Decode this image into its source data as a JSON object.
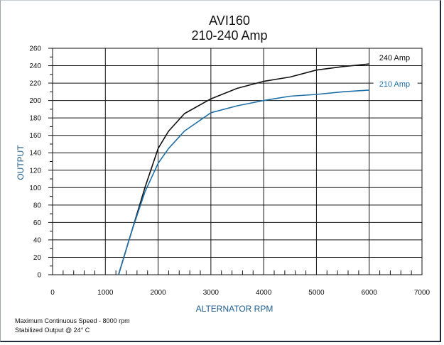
{
  "chart_data": {
    "type": "line",
    "title": "AVI160",
    "subtitle": "210-240 Amp",
    "xlabel": "ALTERNATOR RPM",
    "ylabel": "OUTPUT",
    "xlim": [
      0,
      7000
    ],
    "ylim": [
      0,
      260
    ],
    "xticks": [
      0,
      1000,
      2000,
      3000,
      4000,
      5000,
      6000,
      7000
    ],
    "yticks": [
      0,
      20,
      40,
      60,
      80,
      100,
      120,
      140,
      160,
      180,
      200,
      220,
      240,
      260
    ],
    "grid": true,
    "series": [
      {
        "name": "240 Amp",
        "color": "#111111",
        "x": [
          1250,
          1500,
          1750,
          2000,
          2200,
          2500,
          3000,
          3500,
          4000,
          4500,
          5000,
          5500,
          6000
        ],
        "y": [
          0,
          50,
          100,
          145,
          165,
          185,
          202,
          214,
          222,
          227,
          235,
          239,
          242
        ]
      },
      {
        "name": "210 Amp",
        "color": "#1f6fa8",
        "x": [
          1250,
          1500,
          1750,
          2000,
          2200,
          2500,
          3000,
          3500,
          4000,
          4500,
          5000,
          5500,
          6000
        ],
        "y": [
          0,
          50,
          95,
          128,
          145,
          165,
          186,
          194,
          200,
          205,
          207,
          210,
          212
        ]
      }
    ],
    "notes": [
      "Maximum Continuous Speed - 8000 rpm",
      "Stabilized Output @ 24° C"
    ]
  }
}
